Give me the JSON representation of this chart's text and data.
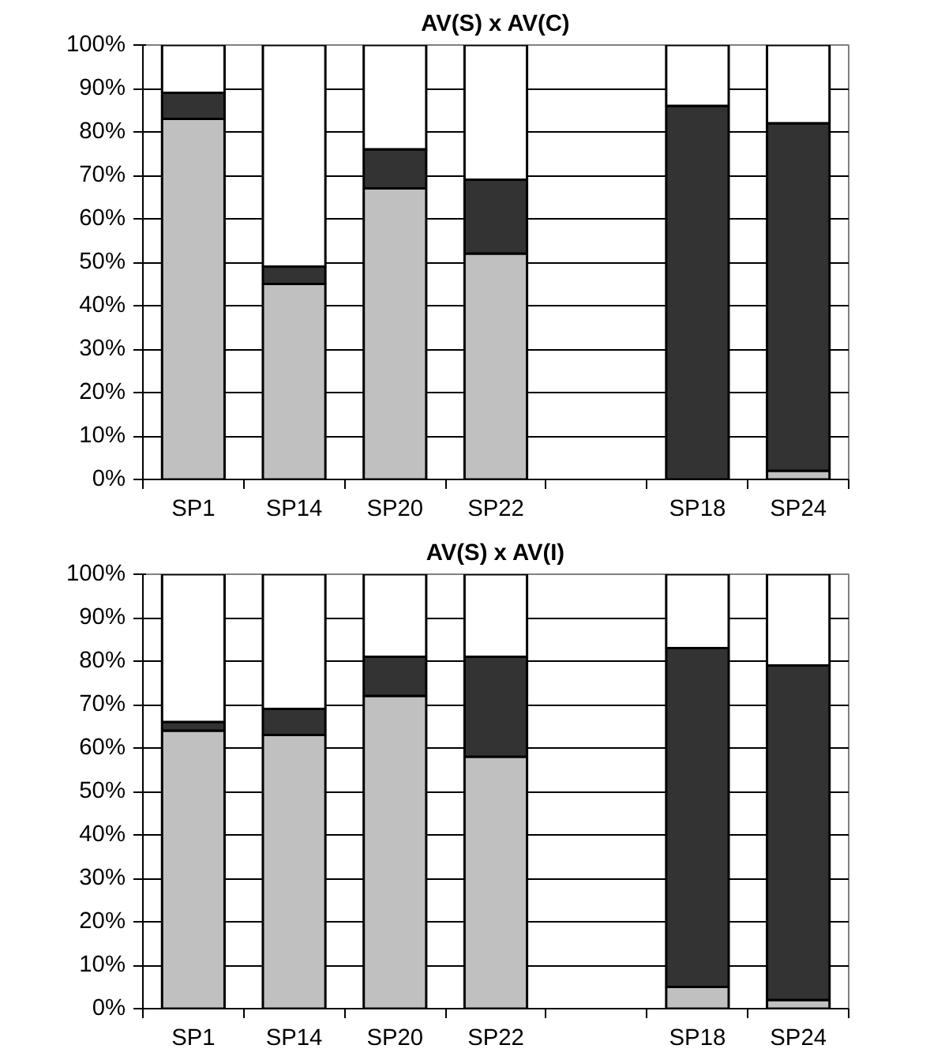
{
  "chart_data": [
    {
      "type": "bar",
      "title": "AV(S) x AV(C)",
      "stacked": true,
      "categories": [
        "SP1",
        "SP14",
        "SP20",
        "SP22",
        null,
        "SP18",
        "SP24"
      ],
      "series": [
        {
          "color": "#c0c0c0",
          "values": [
            83,
            45,
            67,
            52,
            null,
            0,
            2
          ]
        },
        {
          "color": "#333333",
          "values": [
            6,
            4,
            9,
            17,
            null,
            86,
            80
          ]
        },
        {
          "color": "#ffffff",
          "values": [
            11,
            51,
            24,
            31,
            null,
            14,
            18
          ]
        }
      ],
      "ylim": [
        0,
        100
      ],
      "yticks": [
        {
          "value": 0,
          "label": "0%"
        },
        {
          "value": 10,
          "label": "10%"
        },
        {
          "value": 20,
          "label": "20%"
        },
        {
          "value": 30,
          "label": "30%"
        },
        {
          "value": 40,
          "label": "40%"
        },
        {
          "value": 50,
          "label": "50%"
        },
        {
          "value": 60,
          "label": "60%"
        },
        {
          "value": 70,
          "label": "70%"
        },
        {
          "value": 80,
          "label": "80%"
        },
        {
          "value": 90,
          "label": "90%"
        },
        {
          "value": 100,
          "label": "100%"
        }
      ],
      "grid": "y"
    },
    {
      "type": "bar",
      "title": "AV(S) x AV(I)",
      "stacked": true,
      "categories": [
        "SP1",
        "SP14",
        "SP20",
        "SP22",
        null,
        "SP18",
        "SP24"
      ],
      "series": [
        {
          "color": "#c0c0c0",
          "values": [
            64,
            63,
            72,
            58,
            null,
            5,
            2
          ]
        },
        {
          "color": "#333333",
          "values": [
            2,
            6,
            9,
            23,
            null,
            78,
            77
          ]
        },
        {
          "color": "#ffffff",
          "values": [
            34,
            31,
            19,
            19,
            null,
            17,
            21
          ]
        }
      ],
      "ylim": [
        0,
        100
      ],
      "yticks": [
        {
          "value": 0,
          "label": "0%"
        },
        {
          "value": 10,
          "label": "10%"
        },
        {
          "value": 20,
          "label": "20%"
        },
        {
          "value": 30,
          "label": "30%"
        },
        {
          "value": 40,
          "label": "40%"
        },
        {
          "value": 50,
          "label": "50%"
        },
        {
          "value": 60,
          "label": "60%"
        },
        {
          "value": 70,
          "label": "70%"
        },
        {
          "value": 80,
          "label": "80%"
        },
        {
          "value": 90,
          "label": "90%"
        },
        {
          "value": 100,
          "label": "100%"
        }
      ],
      "grid": "y"
    }
  ]
}
